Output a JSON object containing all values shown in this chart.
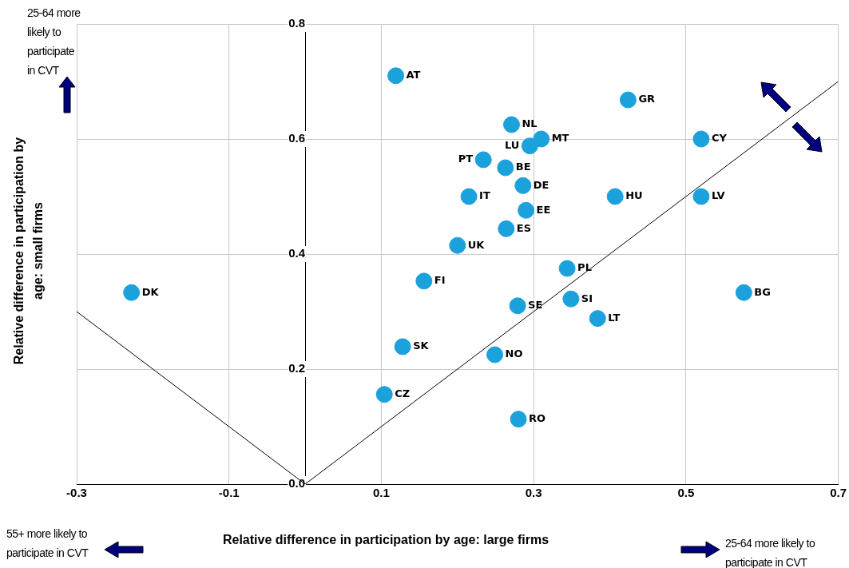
{
  "chart_data": {
    "type": "scatter",
    "xlabel": "Relative difference in participation by age: large firms",
    "ylabel": "Relative difference in participation by age: small firms",
    "annotations": [
      "25-64 more likely to participate in CVT",
      "55+ more likely to participate in CVT",
      "25-64 more likely to participate in CVT"
    ],
    "xlim": [
      -0.3,
      0.7
    ],
    "ylim": [
      0,
      0.8
    ],
    "xticks": [
      -0.3,
      -0.1,
      0.1,
      0.3,
      0.5,
      0.7
    ],
    "yticks": [
      {
        "value": 0,
        "label": "0.0"
      },
      0.2,
      0.4,
      0.6,
      0.8
    ],
    "grid": true,
    "marker": "circle",
    "series": [
      {
        "name": "DK",
        "x": [
          -0.228
        ],
        "values": [
          0.333
        ],
        "color": "#1ba1dc"
      },
      {
        "name": "AT",
        "x": [
          0.119
        ],
        "values": [
          0.71
        ],
        "color": "#1ba1dc"
      },
      {
        "name": "GR",
        "x": [
          0.424
        ],
        "values": [
          0.668
        ],
        "color": "#1ba1dc"
      },
      {
        "name": "NL",
        "x": [
          0.271
        ],
        "values": [
          0.625
        ],
        "color": "#1ba1dc"
      },
      {
        "name": "MT",
        "x": [
          0.31
        ],
        "values": [
          0.6
        ],
        "color": "#1ba1dc"
      },
      {
        "name": "LU",
        "x": [
          0.295
        ],
        "values": [
          0.588
        ],
        "color": "#1ba1dc"
      },
      {
        "name": "CY",
        "x": [
          0.52
        ],
        "values": [
          0.6
        ],
        "color": "#1ba1dc"
      },
      {
        "name": "PT",
        "x": [
          0.234
        ],
        "values": [
          0.564
        ],
        "color": "#1ba1dc"
      },
      {
        "name": "BE",
        "x": [
          0.263
        ],
        "values": [
          0.55
        ],
        "color": "#1ba1dc"
      },
      {
        "name": "DE",
        "x": [
          0.286
        ],
        "values": [
          0.519
        ],
        "color": "#1ba1dc"
      },
      {
        "name": "IT",
        "x": [
          0.215
        ],
        "values": [
          0.5
        ],
        "color": "#1ba1dc"
      },
      {
        "name": "HU",
        "x": [
          0.407
        ],
        "values": [
          0.5
        ],
        "color": "#1ba1dc"
      },
      {
        "name": "LV",
        "x": [
          0.52
        ],
        "values": [
          0.5
        ],
        "color": "#1ba1dc"
      },
      {
        "name": "EE",
        "x": [
          0.29
        ],
        "values": [
          0.476
        ],
        "color": "#1ba1dc"
      },
      {
        "name": "ES",
        "x": [
          0.264
        ],
        "values": [
          0.444
        ],
        "color": "#1ba1dc"
      },
      {
        "name": "UK",
        "x": [
          0.2
        ],
        "values": [
          0.415
        ],
        "color": "#1ba1dc"
      },
      {
        "name": "PL",
        "x": [
          0.344
        ],
        "values": [
          0.375
        ],
        "color": "#1ba1dc"
      },
      {
        "name": "FI",
        "x": [
          0.156
        ],
        "values": [
          0.353
        ],
        "color": "#1ba1dc"
      },
      {
        "name": "BG",
        "x": [
          0.576
        ],
        "values": [
          0.333
        ],
        "color": "#1ba1dc"
      },
      {
        "name": "SI",
        "x": [
          0.349
        ],
        "values": [
          0.322
        ],
        "color": "#1ba1dc"
      },
      {
        "name": "SE",
        "x": [
          0.279
        ],
        "values": [
          0.31
        ],
        "color": "#1ba1dc"
      },
      {
        "name": "LT",
        "x": [
          0.384
        ],
        "values": [
          0.288
        ],
        "color": "#1ba1dc"
      },
      {
        "name": "SK",
        "x": [
          0.128
        ],
        "values": [
          0.239
        ],
        "color": "#1ba1dc"
      },
      {
        "name": "NO",
        "x": [
          0.249
        ],
        "values": [
          0.225
        ],
        "color": "#1ba1dc"
      },
      {
        "name": "CZ",
        "x": [
          0.104
        ],
        "values": [
          0.156
        ],
        "color": "#1ba1dc"
      },
      {
        "name": "RO",
        "x": [
          0.28
        ],
        "values": [
          0.113
        ],
        "color": "#1ba1dc"
      },
      {
        "type": "line",
        "x": [
          0,
          0.7
        ],
        "values": [
          0,
          0.7
        ],
        "color": "#000000",
        "marker": "none"
      },
      {
        "type": "line",
        "x": [
          -0.3,
          0
        ],
        "values": [
          0.3,
          0
        ],
        "color": "#000000",
        "marker": "none"
      }
    ]
  }
}
